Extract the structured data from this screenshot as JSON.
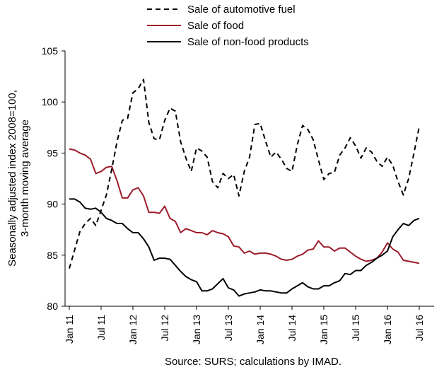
{
  "chart_data": {
    "type": "line",
    "title": "",
    "ylabel": "Seasonally adjusted index 2008=100, 3-month moving average",
    "ylabel_lines": [
      "Seasonally adjusted index 2008=100,",
      "3-month moving average"
    ],
    "xlabel": "",
    "ylim": [
      80,
      105
    ],
    "yticks": [
      80,
      85,
      90,
      95,
      100,
      105
    ],
    "x_tick_labels": [
      "Jan 11",
      "Jul 11",
      "Jan 12",
      "Jul 12",
      "Jan 13",
      "Jul 13",
      "Jan 14",
      "Jul 14",
      "Jan 15",
      "Jul 15",
      "Jan 16",
      "Jul 16"
    ],
    "x_start": "2011-01",
    "n_months": 67,
    "legend_position": "top",
    "grid": false,
    "source": "Source: SURS; calculations by IMAD.",
    "series": [
      {
        "name": "Sale of automotive fuel",
        "color": "#000000",
        "dash": "dashed",
        "values": [
          83.7,
          85.5,
          87.3,
          88.1,
          88.6,
          87.9,
          89.4,
          90.9,
          93.4,
          96.1,
          98.2,
          98.4,
          100.9,
          101.3,
          102.2,
          98.0,
          96.4,
          96.3,
          98.2,
          99.4,
          99.1,
          96.1,
          94.5,
          93.2,
          95.5,
          95.2,
          94.6,
          92.2,
          91.6,
          93.0,
          92.5,
          92.9,
          90.8,
          93.2,
          94.6,
          97.8,
          97.9,
          96.2,
          94.6,
          95.1,
          94.4,
          93.5,
          93.2,
          95.8,
          97.7,
          97.3,
          96.3,
          94.3,
          92.4,
          93.0,
          93.1,
          94.8,
          95.5,
          96.5,
          95.7,
          94.5,
          95.5,
          95.1,
          94.2,
          93.7,
          94.6,
          93.8,
          92.2,
          90.9,
          92.5,
          95.0,
          97.6
        ]
      },
      {
        "name": "Sale of food",
        "color": "#9c1c2b",
        "dash": "solid",
        "values": [
          95.4,
          95.3,
          95.0,
          94.8,
          94.4,
          93.0,
          93.2,
          93.6,
          93.7,
          92.3,
          90.6,
          90.6,
          91.4,
          91.6,
          90.8,
          89.2,
          89.2,
          89.1,
          89.8,
          88.6,
          88.3,
          87.2,
          87.6,
          87.4,
          87.2,
          87.2,
          87.0,
          87.4,
          87.2,
          87.1,
          86.8,
          85.9,
          85.8,
          85.2,
          85.4,
          85.1,
          85.2,
          85.2,
          85.1,
          84.9,
          84.6,
          84.5,
          84.6,
          84.9,
          85.1,
          85.5,
          85.6,
          86.4,
          85.8,
          85.8,
          85.4,
          85.7,
          85.7,
          85.3,
          84.9,
          84.6,
          84.4,
          84.5,
          84.7,
          85.3,
          86.2,
          85.6,
          85.3,
          84.5,
          84.4,
          84.3,
          84.2
        ]
      },
      {
        "name": "Sale of non-food products",
        "color": "#000000",
        "dash": "solid",
        "values": [
          90.5,
          90.5,
          90.2,
          89.6,
          89.5,
          89.6,
          89.2,
          88.6,
          88.4,
          88.1,
          88.1,
          87.6,
          87.2,
          87.2,
          86.6,
          85.8,
          84.5,
          84.7,
          84.7,
          84.6,
          84.0,
          83.4,
          82.9,
          82.6,
          82.4,
          81.5,
          81.5,
          81.7,
          82.2,
          82.7,
          81.8,
          81.6,
          81.0,
          81.2,
          81.3,
          81.4,
          81.6,
          81.5,
          81.5,
          81.4,
          81.3,
          81.3,
          81.7,
          82.0,
          82.3,
          81.9,
          81.7,
          81.7,
          82.0,
          82.0,
          82.3,
          82.5,
          83.2,
          83.1,
          83.5,
          83.5,
          84.0,
          84.3,
          84.7,
          85.0,
          85.4,
          86.8,
          87.5,
          88.1,
          87.9,
          88.4,
          88.6
        ]
      }
    ]
  }
}
